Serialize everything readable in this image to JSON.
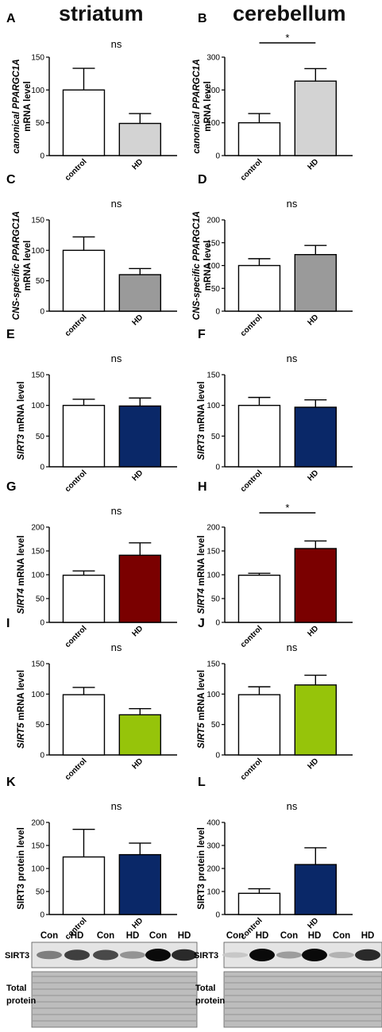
{
  "columns": {
    "left": "striatum",
    "right": "cerebellum"
  },
  "colors": {
    "white": "#ffffff",
    "lightgray": "#d3d3d3",
    "gray": "#9a9a9a",
    "navy": "#0a2868",
    "darkred": "#7a0000",
    "lime": "#96c40a"
  },
  "chart_data": [
    {
      "panel": "A",
      "type": "bar",
      "categories": [
        "control",
        "HD"
      ],
      "values": [
        100,
        49
      ],
      "errors": [
        33,
        15
      ],
      "ylabel_italic": "canonical PPARGC1A",
      "ylabel_plain": "mRNA level",
      "ylim": [
        0,
        150
      ],
      "ticks": [
        "0",
        "50",
        "100",
        "150"
      ],
      "annotation": "ns",
      "colors": [
        "white",
        "lightgray"
      ]
    },
    {
      "panel": "B",
      "type": "bar",
      "categories": [
        "control",
        "HD"
      ],
      "values": [
        100,
        227
      ],
      "errors": [
        28,
        38
      ],
      "ylabel_italic": "canonical PPARGC1A",
      "ylabel_plain": "mRNA level",
      "ylim": [
        0,
        300
      ],
      "ticks": [
        "0",
        "100",
        "200",
        "300"
      ],
      "annotation": "*",
      "colors": [
        "white",
        "lightgray"
      ]
    },
    {
      "panel": "C",
      "type": "bar",
      "categories": [
        "control",
        "HD"
      ],
      "values": [
        100,
        60
      ],
      "errors": [
        22,
        10
      ],
      "ylabel_italic": "CNS-specific PPARGC1A",
      "ylabel_plain": "mRNA level",
      "ylim": [
        0,
        150
      ],
      "ticks": [
        "0",
        "50",
        "100",
        "150"
      ],
      "annotation": "ns",
      "colors": [
        "white",
        "gray"
      ]
    },
    {
      "panel": "D",
      "type": "bar",
      "categories": [
        "control",
        "HD"
      ],
      "values": [
        100,
        124
      ],
      "errors": [
        15,
        20
      ],
      "ylabel_italic": "CNS-specific PPARGC1A",
      "ylabel_plain": "mRNA level",
      "ylim": [
        0,
        200
      ],
      "ticks": [
        "0",
        "50",
        "100",
        "150",
        "200"
      ],
      "annotation": "ns",
      "colors": [
        "white",
        "gray"
      ]
    },
    {
      "panel": "E",
      "type": "bar",
      "categories": [
        "control",
        "HD"
      ],
      "values": [
        100,
        99
      ],
      "errors": [
        10,
        13
      ],
      "ylabel_italic": "SIRT3",
      "ylabel_plain": " mRNA level",
      "ylim": [
        0,
        150
      ],
      "ticks": [
        "0",
        "50",
        "100",
        "150"
      ],
      "annotation": "ns",
      "colors": [
        "white",
        "navy"
      ]
    },
    {
      "panel": "F",
      "type": "bar",
      "categories": [
        "control",
        "HD"
      ],
      "values": [
        100,
        97
      ],
      "errors": [
        13,
        12
      ],
      "ylabel_italic": "SIRT3",
      "ylabel_plain": " mRNA level",
      "ylim": [
        0,
        150
      ],
      "ticks": [
        "0",
        "50",
        "100",
        "150"
      ],
      "annotation": "ns",
      "colors": [
        "white",
        "navy"
      ]
    },
    {
      "panel": "G",
      "type": "bar",
      "categories": [
        "control",
        "HD"
      ],
      "values": [
        99,
        141
      ],
      "errors": [
        9,
        26
      ],
      "ylabel_italic": "SIRT4",
      "ylabel_plain": " mRNA level",
      "ylim": [
        0,
        200
      ],
      "ticks": [
        "0",
        "50",
        "100",
        "150",
        "200"
      ],
      "annotation": "ns",
      "colors": [
        "white",
        "darkred"
      ]
    },
    {
      "panel": "H",
      "type": "bar",
      "categories": [
        "control",
        "HD"
      ],
      "values": [
        99,
        155
      ],
      "errors": [
        4,
        16
      ],
      "ylabel_italic": "SIRT4",
      "ylabel_plain": " mRNA level",
      "ylim": [
        0,
        200
      ],
      "ticks": [
        "0",
        "50",
        "100",
        "150",
        "200"
      ],
      "annotation": "*",
      "colors": [
        "white",
        "darkred"
      ]
    },
    {
      "panel": "I",
      "type": "bar",
      "categories": [
        "control",
        "HD"
      ],
      "values": [
        99,
        66
      ],
      "errors": [
        12,
        10
      ],
      "ylabel_italic": "SIRT5",
      "ylabel_plain": " mRNA level",
      "ylim": [
        0,
        150
      ],
      "ticks": [
        "0",
        "50",
        "100",
        "150"
      ],
      "annotation": "ns",
      "colors": [
        "white",
        "lime"
      ]
    },
    {
      "panel": "J",
      "type": "bar",
      "categories": [
        "control",
        "HD"
      ],
      "values": [
        99,
        115
      ],
      "errors": [
        13,
        16
      ],
      "ylabel_italic": "SIRT5",
      "ylabel_plain": " mRNA level",
      "ylim": [
        0,
        150
      ],
      "ticks": [
        "0",
        "50",
        "100",
        "150"
      ],
      "annotation": "ns",
      "colors": [
        "white",
        "lime"
      ]
    },
    {
      "panel": "K",
      "type": "bar",
      "categories": [
        "control",
        "HD"
      ],
      "values": [
        125,
        130
      ],
      "errors": [
        60,
        25
      ],
      "ylabel_italic": "",
      "ylabel_plain": "SIRT3 protein level",
      "ylim": [
        0,
        200
      ],
      "ticks": [
        "0",
        "50",
        "100",
        "150",
        "200"
      ],
      "annotation": "ns",
      "colors": [
        "white",
        "navy"
      ]
    },
    {
      "panel": "L",
      "type": "bar",
      "categories": [
        "control",
        "HD"
      ],
      "values": [
        92,
        217
      ],
      "errors": [
        20,
        73
      ],
      "ylabel_italic": "",
      "ylabel_plain": "SIRT3 protein level",
      "ylim": [
        0,
        400
      ],
      "ticks": [
        "0",
        "100",
        "200",
        "300",
        "400"
      ],
      "annotation": "ns",
      "colors": [
        "white",
        "navy"
      ]
    }
  ],
  "blots": [
    {
      "side": "left",
      "lanes": [
        "Con",
        "HD",
        "Con",
        "HD",
        "Con",
        "HD"
      ],
      "band_intensity": [
        0.45,
        0.75,
        0.7,
        0.35,
        1.0,
        0.85
      ],
      "row_labels": [
        "SIRT3",
        "Total",
        "protein"
      ]
    },
    {
      "side": "right",
      "lanes": [
        "Con",
        "HD",
        "Con",
        "HD",
        "Con",
        "HD"
      ],
      "band_intensity": [
        0.1,
        1.0,
        0.3,
        1.0,
        0.2,
        0.85
      ],
      "row_labels": [
        "SIRT3",
        "Total",
        "protein"
      ]
    }
  ]
}
